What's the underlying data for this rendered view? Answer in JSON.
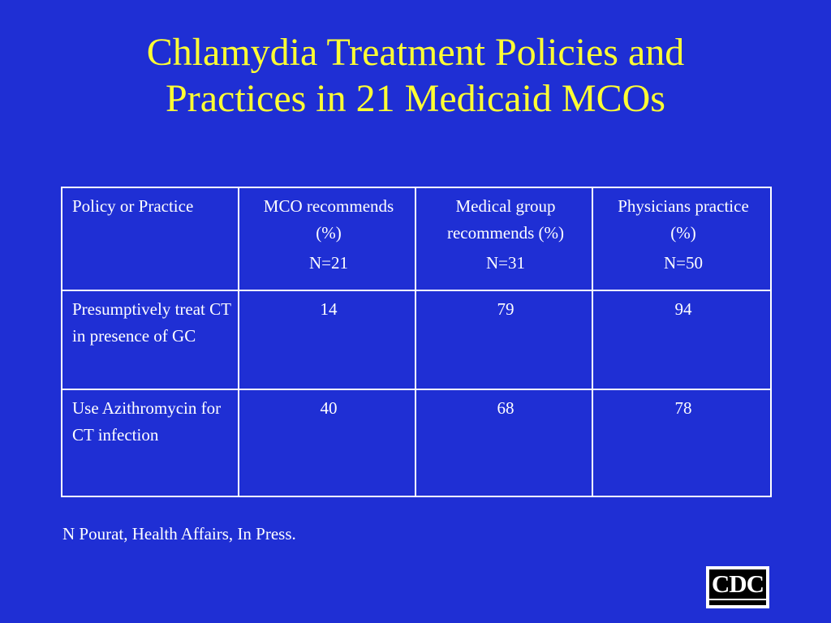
{
  "title": {
    "line1": "Chlamydia Treatment Policies and",
    "line2": "Practices in 21 Medicaid MCOs"
  },
  "table": {
    "headers": [
      {
        "label": "Policy or Practice",
        "n": ""
      },
      {
        "label": "MCO recommends (%)",
        "n": "N=21"
      },
      {
        "label": "Medical group recommends (%)",
        "n": "N=31"
      },
      {
        "label": "Physicians practice (%)",
        "n": "N=50"
      }
    ],
    "rows": [
      {
        "label": "Presumptively treat CT in presence of GC",
        "values": [
          "14",
          "79",
          "94"
        ]
      },
      {
        "label": "Use Azithromycin for CT infection",
        "values": [
          "40",
          "68",
          "78"
        ]
      }
    ]
  },
  "citation": "N Pourat, Health Affairs, In Press.",
  "logo": {
    "text": "CDC"
  },
  "colors": {
    "background": "#1f2fd4",
    "title": "#ffff33",
    "text": "#ffffff"
  }
}
